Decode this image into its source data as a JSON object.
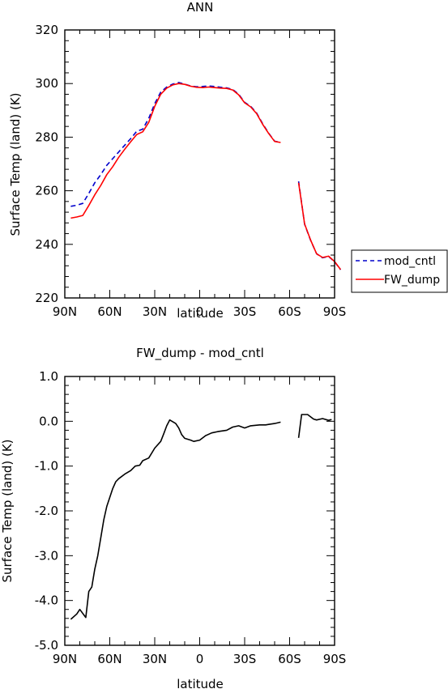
{
  "chart_data": [
    {
      "type": "line",
      "title": "ANN",
      "xlabel": "latitude",
      "ylabel": "Surface Temp (land) (K)",
      "xlim": [
        90,
        -90
      ],
      "ylim": [
        220,
        320
      ],
      "xticks": [
        90,
        60,
        30,
        0,
        -30,
        -60,
        -90
      ],
      "xtick_labels": [
        "90N",
        "60N",
        "30N",
        "0",
        "30S",
        "60S",
        "90S"
      ],
      "yticks": [
        220,
        240,
        260,
        280,
        300,
        320
      ],
      "ytick_labels": [
        "220",
        "240",
        "260",
        "280",
        "300",
        "320"
      ],
      "legend_position": "right",
      "series": [
        {
          "name": "mod_cntl",
          "color": "#0000cc",
          "style": "dashed",
          "segments": [
            [
              [
                86,
                254.2
              ],
              [
                82,
                254.6
              ],
              [
                78,
                255.3
              ],
              [
                74,
                259
              ],
              [
                70,
                263
              ],
              [
                66,
                266
              ],
              [
                62,
                269.5
              ],
              [
                58,
                272
              ],
              [
                54,
                274.5
              ],
              [
                50,
                277
              ],
              [
                46,
                279.5
              ],
              [
                42,
                282.2
              ],
              [
                38,
                283
              ],
              [
                34,
                287
              ],
              [
                30,
                292.5
              ],
              [
                26,
                296.8
              ],
              [
                22,
                298.7
              ],
              [
                18,
                299.8
              ],
              [
                14,
                300.4
              ],
              [
                10,
                299.8
              ],
              [
                6,
                299.1
              ],
              [
                2,
                298.8
              ],
              [
                -2,
                298.9
              ],
              [
                -6,
                299.1
              ],
              [
                -10,
                298.9
              ],
              [
                -14,
                298.6
              ],
              [
                -18,
                298.4
              ],
              [
                -22,
                297.8
              ],
              [
                -26,
                296
              ],
              [
                -30,
                293
              ],
              [
                -34,
                291.5
              ],
              [
                -38,
                289
              ],
              [
                -42,
                285
              ],
              [
                -46,
                281.5
              ],
              [
                -50,
                278.5
              ],
              [
                -54,
                278
              ]
            ],
            [
              [
                -66,
                263.5
              ],
              [
                -70,
                247.5
              ],
              [
                -74,
                241.5
              ],
              [
                -78,
                236.5
              ],
              [
                -82,
                235
              ],
              [
                -86,
                235.5
              ],
              [
                -90,
                233.5
              ],
              [
                -94,
                230.5
              ]
            ]
          ]
        },
        {
          "name": "FW_dump",
          "color": "#ff0000",
          "style": "solid",
          "segments": [
            [
              [
                86,
                249.8
              ],
              [
                82,
                250.2
              ],
              [
                78,
                250.8
              ],
              [
                74,
                254.5
              ],
              [
                70,
                258.5
              ],
              [
                66,
                262
              ],
              [
                62,
                266
              ],
              [
                58,
                269
              ],
              [
                54,
                272.5
              ],
              [
                50,
                275.5
              ],
              [
                46,
                278.3
              ],
              [
                42,
                281
              ],
              [
                38,
                282
              ],
              [
                34,
                285.5
              ],
              [
                30,
                291.5
              ],
              [
                26,
                296
              ],
              [
                22,
                298.3
              ],
              [
                18,
                299.5
              ],
              [
                14,
                300
              ],
              [
                10,
                299.7
              ],
              [
                6,
                299
              ],
              [
                2,
                298.6
              ],
              [
                -2,
                298.5
              ],
              [
                -6,
                298.7
              ],
              [
                -10,
                298.5
              ],
              [
                -14,
                298.3
              ],
              [
                -18,
                298.2
              ],
              [
                -22,
                297.6
              ],
              [
                -26,
                295.8
              ],
              [
                -30,
                292.8
              ],
              [
                -34,
                291.3
              ],
              [
                -38,
                288.8
              ],
              [
                -42,
                284.8
              ],
              [
                -46,
                281.4
              ],
              [
                -50,
                278.4
              ],
              [
                -54,
                278
              ]
            ],
            [
              [
                -66,
                263
              ],
              [
                -70,
                247.6
              ],
              [
                -74,
                241.6
              ],
              [
                -78,
                236.5
              ],
              [
                -82,
                235.1
              ],
              [
                -86,
                235.6
              ],
              [
                -90,
                233.6
              ],
              [
                -94,
                230.6
              ]
            ]
          ]
        }
      ]
    },
    {
      "type": "line",
      "title": "FW_dump - mod_cntl",
      "xlabel": "latitude",
      "ylabel": "Surface Temp (land) (K)",
      "xlim": [
        90,
        -90
      ],
      "ylim": [
        -5.0,
        1.0
      ],
      "xticks": [
        90,
        60,
        30,
        0,
        -30,
        -60,
        -90
      ],
      "xtick_labels": [
        "90N",
        "60N",
        "30N",
        "0",
        "30S",
        "60S",
        "90S"
      ],
      "yticks": [
        1.0,
        0.0,
        -1.0,
        -2.0,
        -3.0,
        -4.0,
        -5.0
      ],
      "ytick_labels": [
        "1.0",
        "0.0",
        "-1.0",
        "-2.0",
        "-3.0",
        "-4.0",
        "-5.0"
      ],
      "series": [
        {
          "color": "#000000",
          "style": "solid",
          "segments": [
            [
              [
                86,
                -4.42
              ],
              [
                82,
                -4.3
              ],
              [
                80,
                -4.2
              ],
              [
                76,
                -4.38
              ],
              [
                74,
                -3.8
              ],
              [
                72,
                -3.7
              ],
              [
                70,
                -3.3
              ],
              [
                68,
                -3.0
              ],
              [
                66,
                -2.6
              ],
              [
                64,
                -2.2
              ],
              [
                62,
                -1.9
              ],
              [
                60,
                -1.7
              ],
              [
                58,
                -1.5
              ],
              [
                56,
                -1.35
              ],
              [
                54,
                -1.28
              ],
              [
                50,
                -1.18
              ],
              [
                46,
                -1.1
              ],
              [
                43,
                -1.0
              ],
              [
                40,
                -0.98
              ],
              [
                38,
                -0.88
              ],
              [
                34,
                -0.82
              ],
              [
                30,
                -0.6
              ],
              [
                26,
                -0.45
              ],
              [
                24,
                -0.28
              ],
              [
                22,
                -0.1
              ],
              [
                20,
                0.03
              ],
              [
                16,
                -0.05
              ],
              [
                14,
                -0.15
              ],
              [
                12,
                -0.3
              ],
              [
                10,
                -0.38
              ],
              [
                6,
                -0.42
              ],
              [
                4,
                -0.45
              ],
              [
                0,
                -0.42
              ],
              [
                -4,
                -0.32
              ],
              [
                -8,
                -0.26
              ],
              [
                -12,
                -0.23
              ],
              [
                -18,
                -0.2
              ],
              [
                -22,
                -0.13
              ],
              [
                -26,
                -0.1
              ],
              [
                -30,
                -0.15
              ],
              [
                -34,
                -0.1
              ],
              [
                -40,
                -0.08
              ],
              [
                -44,
                -0.08
              ],
              [
                -46,
                -0.07
              ],
              [
                -50,
                -0.05
              ],
              [
                -54,
                -0.02
              ]
            ],
            [
              [
                -66,
                -0.37
              ],
              [
                -68,
                0.15
              ],
              [
                -72,
                0.15
              ],
              [
                -76,
                0.05
              ],
              [
                -78,
                0.03
              ],
              [
                -82,
                0.06
              ],
              [
                -86,
                0.02
              ],
              [
                -88,
                0.04
              ]
            ]
          ]
        }
      ]
    }
  ]
}
